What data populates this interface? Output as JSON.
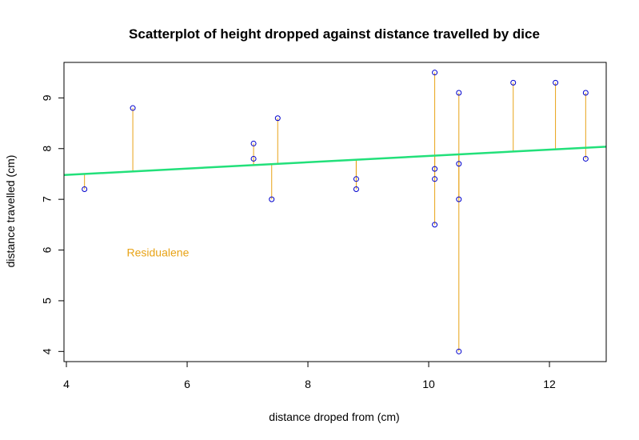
{
  "chart_data": {
    "type": "scatter",
    "title": "Scatterplot of height dropped against distance travelled by dice",
    "xlabel": "distance droped from (cm)",
    "ylabel": "distance travelled (cm)",
    "xlim": [
      3.96,
      12.94
    ],
    "ylim": [
      3.8,
      9.7
    ],
    "x_ticks": [
      4,
      6,
      8,
      10,
      12
    ],
    "y_ticks": [
      4,
      5,
      6,
      7,
      8,
      9
    ],
    "grid": false,
    "points": [
      {
        "x": 4.3,
        "y": 7.2
      },
      {
        "x": 5.1,
        "y": 8.8
      },
      {
        "x": 7.1,
        "y": 8.1
      },
      {
        "x": 7.1,
        "y": 7.8
      },
      {
        "x": 7.4,
        "y": 7.0
      },
      {
        "x": 7.5,
        "y": 8.6
      },
      {
        "x": 8.8,
        "y": 7.4
      },
      {
        "x": 8.8,
        "y": 7.2
      },
      {
        "x": 10.1,
        "y": 9.5
      },
      {
        "x": 10.1,
        "y": 7.6
      },
      {
        "x": 10.1,
        "y": 7.4
      },
      {
        "x": 10.1,
        "y": 6.5
      },
      {
        "x": 10.5,
        "y": 9.1
      },
      {
        "x": 10.5,
        "y": 7.7
      },
      {
        "x": 10.5,
        "y": 7.0
      },
      {
        "x": 10.5,
        "y": 4.0
      },
      {
        "x": 11.4,
        "y": 9.3
      },
      {
        "x": 12.1,
        "y": 9.3
      },
      {
        "x": 12.6,
        "y": 9.1
      },
      {
        "x": 12.6,
        "y": 7.8
      }
    ],
    "regression_line": {
      "intercept": 7.233,
      "slope": 0.0622
    },
    "annotation": {
      "text": "Residualene",
      "x": 5.0,
      "y": 5.95
    },
    "colors": {
      "points": "#0000cc",
      "regression": "#22e07a",
      "residuals": "#e8a317",
      "annotation": "#e8a317",
      "axes": "#000000"
    }
  }
}
